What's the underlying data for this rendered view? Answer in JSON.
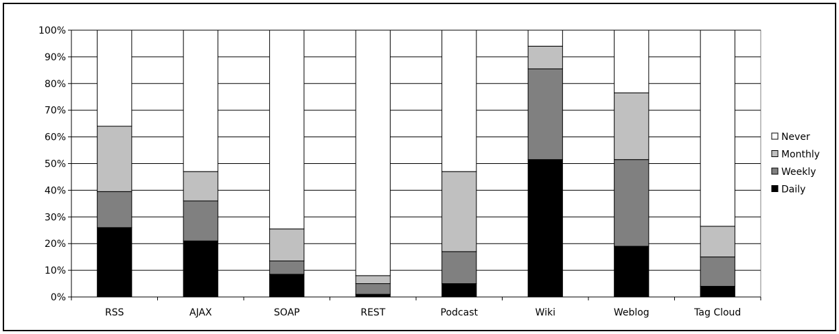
{
  "chart_data": {
    "type": "bar",
    "stacked": true,
    "percent_scale": true,
    "title": "",
    "xlabel": "",
    "ylabel": "",
    "ylim": [
      0,
      100
    ],
    "yticks": [
      0,
      10,
      20,
      30,
      40,
      50,
      60,
      70,
      80,
      90,
      100
    ],
    "ytick_labels": [
      "0%",
      "10%",
      "20%",
      "30%",
      "40%",
      "50%",
      "60%",
      "70%",
      "80%",
      "90%",
      "100%"
    ],
    "grid": true,
    "legend_position": "right",
    "categories": [
      "RSS",
      "AJAX",
      "SOAP",
      "REST",
      "Podcast",
      "Wiki",
      "Weblog",
      "Tag Cloud"
    ],
    "series": [
      {
        "name": "Daily",
        "color": "#000000",
        "values": [
          26,
          21,
          8.5,
          1,
          5,
          51.5,
          19,
          4
        ]
      },
      {
        "name": "Weekly",
        "color": "#808080",
        "values": [
          13.5,
          15,
          5,
          4,
          12,
          34,
          32.5,
          11
        ]
      },
      {
        "name": "Monthly",
        "color": "#c0c0c0",
        "values": [
          24.5,
          11,
          12,
          3,
          30,
          8.5,
          25,
          11.5
        ]
      },
      {
        "name": "Never",
        "color": "#ffffff",
        "values": [
          36,
          53,
          74.5,
          92,
          53,
          6,
          23.5,
          73.5
        ]
      }
    ],
    "legend_order": [
      "Never",
      "Monthly",
      "Weekly",
      "Daily"
    ]
  }
}
